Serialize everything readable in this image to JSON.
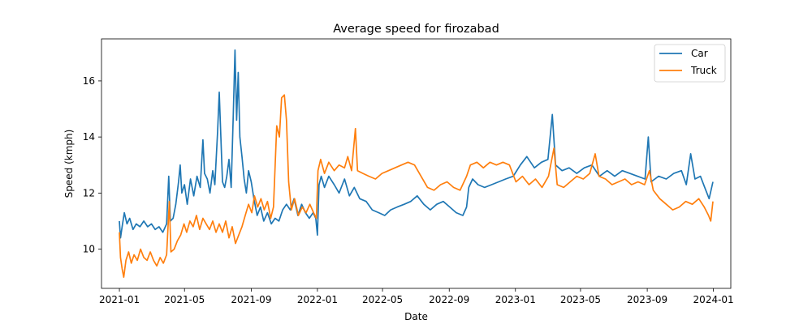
{
  "chart_data": {
    "type": "line",
    "title": "Average speed for firozabad",
    "xlabel": "Date",
    "ylabel": "Speed (kmph)",
    "x_ticks": [
      "2021-01",
      "2021-05",
      "2021-09",
      "2022-01",
      "2022-05",
      "2022-09",
      "2023-01",
      "2023-05",
      "2023-09",
      "2024-01"
    ],
    "y_ticks": [
      10,
      12,
      14,
      16
    ],
    "xlim": [
      "2020-11-29",
      "2024-02-02"
    ],
    "ylim": [
      8.6,
      17.5
    ],
    "grid": false,
    "legend_position": "top-right",
    "series": [
      {
        "name": "Car",
        "color": "#1f77b4",
        "points": [
          [
            "2021-01-01",
            11.0
          ],
          [
            "2021-01-03",
            10.4
          ],
          [
            "2021-01-06",
            10.8
          ],
          [
            "2021-01-10",
            11.3
          ],
          [
            "2021-01-15",
            10.9
          ],
          [
            "2021-01-20",
            11.1
          ],
          [
            "2021-01-26",
            10.7
          ],
          [
            "2021-02-01",
            10.9
          ],
          [
            "2021-02-08",
            10.8
          ],
          [
            "2021-02-15",
            11.0
          ],
          [
            "2021-02-22",
            10.8
          ],
          [
            "2021-03-01",
            10.9
          ],
          [
            "2021-03-08",
            10.7
          ],
          [
            "2021-03-15",
            10.8
          ],
          [
            "2021-03-22",
            10.6
          ],
          [
            "2021-03-29",
            10.9
          ],
          [
            "2021-04-02",
            12.6
          ],
          [
            "2021-04-05",
            11.0
          ],
          [
            "2021-04-10",
            11.1
          ],
          [
            "2021-04-15",
            11.6
          ],
          [
            "2021-04-20",
            12.4
          ],
          [
            "2021-04-23",
            13.0
          ],
          [
            "2021-04-26",
            12.0
          ],
          [
            "2021-05-01",
            12.3
          ],
          [
            "2021-05-06",
            11.6
          ],
          [
            "2021-05-12",
            12.5
          ],
          [
            "2021-05-18",
            11.9
          ],
          [
            "2021-05-24",
            12.6
          ],
          [
            "2021-05-30",
            12.2
          ],
          [
            "2021-06-04",
            13.9
          ],
          [
            "2021-06-07",
            12.7
          ],
          [
            "2021-06-12",
            12.5
          ],
          [
            "2021-06-17",
            12.0
          ],
          [
            "2021-06-22",
            12.8
          ],
          [
            "2021-06-26",
            12.3
          ],
          [
            "2021-07-01",
            14.2
          ],
          [
            "2021-07-04",
            15.6
          ],
          [
            "2021-07-07",
            14.0
          ],
          [
            "2021-07-10",
            12.4
          ],
          [
            "2021-07-14",
            12.2
          ],
          [
            "2021-07-18",
            12.6
          ],
          [
            "2021-07-22",
            13.2
          ],
          [
            "2021-07-26",
            12.2
          ],
          [
            "2021-07-30",
            14.8
          ],
          [
            "2021-08-02",
            17.1
          ],
          [
            "2021-08-05",
            14.6
          ],
          [
            "2021-08-08",
            16.3
          ],
          [
            "2021-08-11",
            14.0
          ],
          [
            "2021-08-15",
            13.3
          ],
          [
            "2021-08-19",
            12.5
          ],
          [
            "2021-08-23",
            12.0
          ],
          [
            "2021-08-27",
            12.8
          ],
          [
            "2021-09-01",
            12.4
          ],
          [
            "2021-09-06",
            11.8
          ],
          [
            "2021-09-12",
            11.2
          ],
          [
            "2021-09-18",
            11.5
          ],
          [
            "2021-09-24",
            11.0
          ],
          [
            "2021-10-01",
            11.3
          ],
          [
            "2021-10-08",
            10.9
          ],
          [
            "2021-10-15",
            11.1
          ],
          [
            "2021-10-22",
            11.0
          ],
          [
            "2021-10-29",
            11.4
          ],
          [
            "2021-11-05",
            11.6
          ],
          [
            "2021-11-12",
            11.4
          ],
          [
            "2021-11-19",
            11.8
          ],
          [
            "2021-11-26",
            11.2
          ],
          [
            "2021-12-03",
            11.6
          ],
          [
            "2021-12-10",
            11.3
          ],
          [
            "2021-12-17",
            11.1
          ],
          [
            "2021-12-24",
            11.3
          ],
          [
            "2021-12-29",
            11.1
          ],
          [
            "2022-01-01",
            10.5
          ],
          [
            "2022-01-04",
            12.3
          ],
          [
            "2022-01-08",
            12.6
          ],
          [
            "2022-01-14",
            12.2
          ],
          [
            "2022-01-22",
            12.6
          ],
          [
            "2022-02-01",
            12.3
          ],
          [
            "2022-02-10",
            12.0
          ],
          [
            "2022-02-20",
            12.5
          ],
          [
            "2022-03-01",
            11.9
          ],
          [
            "2022-03-10",
            12.2
          ],
          [
            "2022-03-20",
            11.8
          ],
          [
            "2022-04-01",
            11.7
          ],
          [
            "2022-04-12",
            11.4
          ],
          [
            "2022-04-24",
            11.3
          ],
          [
            "2022-05-05",
            11.2
          ],
          [
            "2022-05-16",
            11.4
          ],
          [
            "2022-05-28",
            11.5
          ],
          [
            "2022-06-10",
            11.6
          ],
          [
            "2022-06-22",
            11.7
          ],
          [
            "2022-07-04",
            11.9
          ],
          [
            "2022-07-16",
            11.6
          ],
          [
            "2022-07-28",
            11.4
          ],
          [
            "2022-08-09",
            11.6
          ],
          [
            "2022-08-21",
            11.7
          ],
          [
            "2022-09-02",
            11.5
          ],
          [
            "2022-09-14",
            11.3
          ],
          [
            "2022-09-26",
            11.2
          ],
          [
            "2022-10-03",
            11.5
          ],
          [
            "2022-10-07",
            12.2
          ],
          [
            "2022-10-14",
            12.5
          ],
          [
            "2022-10-24",
            12.3
          ],
          [
            "2022-11-05",
            12.2
          ],
          [
            "2022-11-18",
            12.3
          ],
          [
            "2022-12-01",
            12.4
          ],
          [
            "2022-12-14",
            12.5
          ],
          [
            "2022-12-28",
            12.6
          ],
          [
            "2023-01-10",
            13.0
          ],
          [
            "2023-01-22",
            13.3
          ],
          [
            "2023-02-05",
            12.9
          ],
          [
            "2023-02-18",
            13.1
          ],
          [
            "2023-03-02",
            13.2
          ],
          [
            "2023-03-10",
            14.8
          ],
          [
            "2023-03-16",
            13.0
          ],
          [
            "2023-03-28",
            12.8
          ],
          [
            "2023-04-10",
            12.9
          ],
          [
            "2023-04-24",
            12.7
          ],
          [
            "2023-05-08",
            12.9
          ],
          [
            "2023-05-22",
            13.0
          ],
          [
            "2023-06-05",
            12.6
          ],
          [
            "2023-06-19",
            12.8
          ],
          [
            "2023-07-03",
            12.6
          ],
          [
            "2023-07-17",
            12.8
          ],
          [
            "2023-07-31",
            12.7
          ],
          [
            "2023-08-14",
            12.6
          ],
          [
            "2023-08-28",
            12.5
          ],
          [
            "2023-09-03",
            14.0
          ],
          [
            "2023-09-08",
            12.4
          ],
          [
            "2023-09-22",
            12.6
          ],
          [
            "2023-10-06",
            12.5
          ],
          [
            "2023-10-20",
            12.7
          ],
          [
            "2023-11-03",
            12.8
          ],
          [
            "2023-11-12",
            12.3
          ],
          [
            "2023-11-20",
            13.4
          ],
          [
            "2023-11-28",
            12.5
          ],
          [
            "2023-12-08",
            12.6
          ],
          [
            "2023-12-16",
            12.2
          ],
          [
            "2023-12-24",
            11.8
          ],
          [
            "2023-12-31",
            12.4
          ]
        ]
      },
      {
        "name": "Truck",
        "color": "#ff7f0e",
        "points": [
          [
            "2021-01-01",
            10.6
          ],
          [
            "2021-01-03",
            9.7
          ],
          [
            "2021-01-06",
            9.3
          ],
          [
            "2021-01-09",
            9.0
          ],
          [
            "2021-01-13",
            9.6
          ],
          [
            "2021-01-18",
            9.9
          ],
          [
            "2021-01-23",
            9.5
          ],
          [
            "2021-01-28",
            9.8
          ],
          [
            "2021-02-03",
            9.6
          ],
          [
            "2021-02-09",
            10.0
          ],
          [
            "2021-02-15",
            9.7
          ],
          [
            "2021-02-21",
            9.6
          ],
          [
            "2021-02-27",
            9.9
          ],
          [
            "2021-03-05",
            9.6
          ],
          [
            "2021-03-11",
            9.4
          ],
          [
            "2021-03-17",
            9.7
          ],
          [
            "2021-03-23",
            9.5
          ],
          [
            "2021-03-29",
            9.8
          ],
          [
            "2021-04-03",
            11.7
          ],
          [
            "2021-04-06",
            9.9
          ],
          [
            "2021-04-12",
            10.0
          ],
          [
            "2021-04-18",
            10.3
          ],
          [
            "2021-04-24",
            10.5
          ],
          [
            "2021-04-30",
            10.9
          ],
          [
            "2021-05-05",
            10.6
          ],
          [
            "2021-05-11",
            11.0
          ],
          [
            "2021-05-17",
            10.8
          ],
          [
            "2021-05-23",
            11.2
          ],
          [
            "2021-05-29",
            10.7
          ],
          [
            "2021-06-04",
            11.1
          ],
          [
            "2021-06-10",
            10.9
          ],
          [
            "2021-06-16",
            10.7
          ],
          [
            "2021-06-22",
            11.0
          ],
          [
            "2021-06-28",
            10.6
          ],
          [
            "2021-07-04",
            10.9
          ],
          [
            "2021-07-10",
            10.6
          ],
          [
            "2021-07-16",
            11.0
          ],
          [
            "2021-07-22",
            10.4
          ],
          [
            "2021-07-28",
            10.8
          ],
          [
            "2021-08-03",
            10.2
          ],
          [
            "2021-08-09",
            10.5
          ],
          [
            "2021-08-15",
            10.8
          ],
          [
            "2021-08-21",
            11.2
          ],
          [
            "2021-08-27",
            11.6
          ],
          [
            "2021-09-02",
            11.3
          ],
          [
            "2021-09-07",
            11.9
          ],
          [
            "2021-09-13",
            11.5
          ],
          [
            "2021-09-19",
            11.8
          ],
          [
            "2021-09-25",
            11.4
          ],
          [
            "2021-10-01",
            11.7
          ],
          [
            "2021-10-07",
            11.1
          ],
          [
            "2021-10-12",
            11.5
          ],
          [
            "2021-10-18",
            14.4
          ],
          [
            "2021-10-23",
            14.0
          ],
          [
            "2021-10-27",
            15.4
          ],
          [
            "2021-11-01",
            15.5
          ],
          [
            "2021-11-05",
            14.6
          ],
          [
            "2021-11-09",
            12.4
          ],
          [
            "2021-11-14",
            11.4
          ],
          [
            "2021-11-20",
            11.8
          ],
          [
            "2021-11-27",
            11.2
          ],
          [
            "2021-12-04",
            11.5
          ],
          [
            "2021-12-11",
            11.3
          ],
          [
            "2021-12-18",
            11.6
          ],
          [
            "2021-12-25",
            11.3
          ],
          [
            "2021-12-30",
            11.1
          ],
          [
            "2022-01-02",
            12.8
          ],
          [
            "2022-01-07",
            13.2
          ],
          [
            "2022-01-14",
            12.7
          ],
          [
            "2022-01-22",
            13.1
          ],
          [
            "2022-02-01",
            12.8
          ],
          [
            "2022-02-10",
            13.0
          ],
          [
            "2022-02-20",
            12.9
          ],
          [
            "2022-02-26",
            13.3
          ],
          [
            "2022-03-05",
            12.8
          ],
          [
            "2022-03-12",
            14.3
          ],
          [
            "2022-03-16",
            12.8
          ],
          [
            "2022-03-26",
            12.7
          ],
          [
            "2022-04-06",
            12.6
          ],
          [
            "2022-04-18",
            12.5
          ],
          [
            "2022-04-30",
            12.7
          ],
          [
            "2022-05-12",
            12.8
          ],
          [
            "2022-05-24",
            12.9
          ],
          [
            "2022-06-05",
            13.0
          ],
          [
            "2022-06-17",
            13.1
          ],
          [
            "2022-06-29",
            13.0
          ],
          [
            "2022-07-11",
            12.6
          ],
          [
            "2022-07-23",
            12.2
          ],
          [
            "2022-08-04",
            12.1
          ],
          [
            "2022-08-16",
            12.3
          ],
          [
            "2022-08-28",
            12.4
          ],
          [
            "2022-09-09",
            12.2
          ],
          [
            "2022-09-21",
            12.1
          ],
          [
            "2022-10-03",
            12.6
          ],
          [
            "2022-10-10",
            13.0
          ],
          [
            "2022-10-22",
            13.1
          ],
          [
            "2022-11-03",
            12.9
          ],
          [
            "2022-11-15",
            13.1
          ],
          [
            "2022-11-27",
            13.0
          ],
          [
            "2022-12-09",
            13.1
          ],
          [
            "2022-12-21",
            13.0
          ],
          [
            "2023-01-02",
            12.4
          ],
          [
            "2023-01-14",
            12.6
          ],
          [
            "2023-01-26",
            12.3
          ],
          [
            "2023-02-07",
            12.5
          ],
          [
            "2023-02-19",
            12.2
          ],
          [
            "2023-03-03",
            12.6
          ],
          [
            "2023-03-13",
            13.6
          ],
          [
            "2023-03-19",
            12.3
          ],
          [
            "2023-03-31",
            12.2
          ],
          [
            "2023-04-12",
            12.4
          ],
          [
            "2023-04-24",
            12.6
          ],
          [
            "2023-05-06",
            12.5
          ],
          [
            "2023-05-18",
            12.7
          ],
          [
            "2023-05-28",
            13.4
          ],
          [
            "2023-06-04",
            12.6
          ],
          [
            "2023-06-16",
            12.5
          ],
          [
            "2023-06-28",
            12.3
          ],
          [
            "2023-07-10",
            12.4
          ],
          [
            "2023-07-22",
            12.5
          ],
          [
            "2023-08-03",
            12.3
          ],
          [
            "2023-08-15",
            12.4
          ],
          [
            "2023-08-27",
            12.3
          ],
          [
            "2023-09-05",
            12.8
          ],
          [
            "2023-09-12",
            12.1
          ],
          [
            "2023-09-24",
            11.8
          ],
          [
            "2023-10-06",
            11.6
          ],
          [
            "2023-10-18",
            11.4
          ],
          [
            "2023-10-30",
            11.5
          ],
          [
            "2023-11-11",
            11.7
          ],
          [
            "2023-11-23",
            11.6
          ],
          [
            "2023-12-05",
            11.8
          ],
          [
            "2023-12-15",
            11.5
          ],
          [
            "2023-12-23",
            11.2
          ],
          [
            "2023-12-27",
            11.0
          ],
          [
            "2023-12-31",
            11.7
          ]
        ]
      }
    ]
  }
}
